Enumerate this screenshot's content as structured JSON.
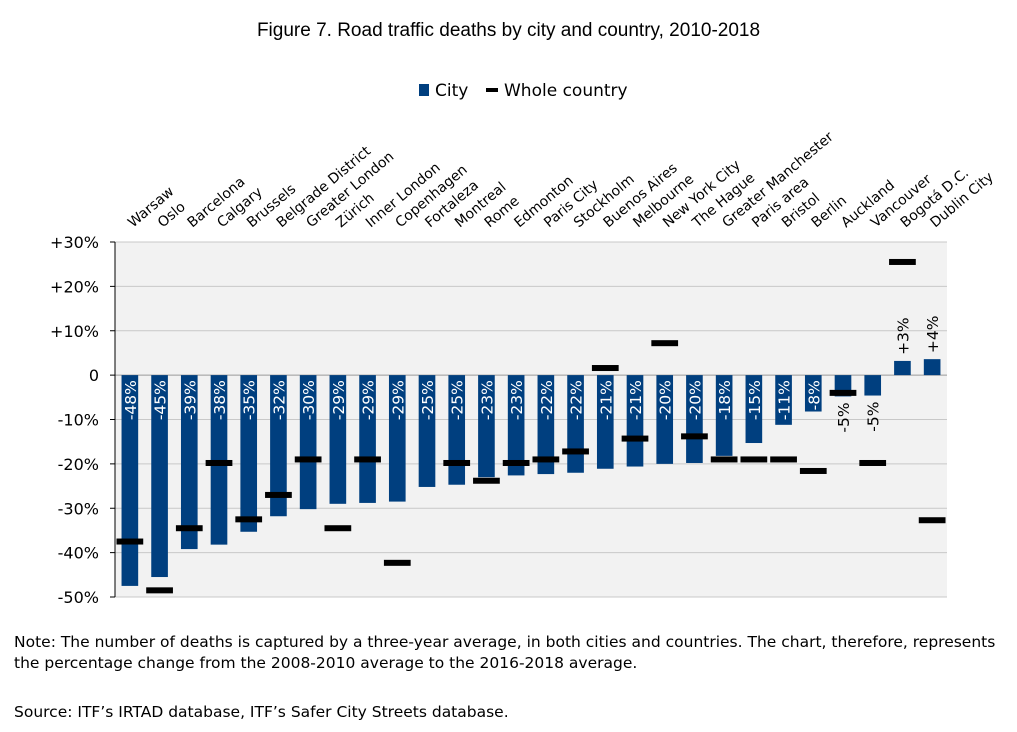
{
  "chart_data": {
    "type": "bar",
    "title": "Figure 7. Road traffic deaths by city and country, 2010-2018",
    "legend": {
      "position": "top",
      "entries": [
        "City",
        "Whole country"
      ]
    },
    "ylim": [
      -50,
      30
    ],
    "y_ticks": [
      "+30%",
      "+20%",
      "+10%",
      "0",
      "-10%",
      "-20%",
      "-30%",
      "-40%",
      "-50%"
    ],
    "grid": true,
    "categories": [
      "Warsaw",
      "Oslo",
      "Barcelona",
      "Calgary",
      "Brussels",
      "Belgrade District",
      "Greater London",
      "Zürich",
      "Inner London",
      "Copenhagen",
      "Fortaleza",
      "Montreal",
      "Rome",
      "Edmonton",
      "Paris City",
      "Stockholm",
      "Buenos Aires",
      "Melbourne",
      "New York City",
      "The Hague",
      "Greater Manchester",
      "Paris area",
      "Bristol",
      "Berlin",
      "Auckland",
      "Vancouver",
      "Bogotá D.C.",
      "Dublin City"
    ],
    "series": [
      {
        "name": "City",
        "color": "#003f7f",
        "values": [
          -47.5,
          -45.5,
          -39.2,
          -38.2,
          -35.3,
          -31.8,
          -30.2,
          -29.0,
          -28.8,
          -28.5,
          -25.2,
          -24.7,
          -23.0,
          -22.6,
          -22.3,
          -22.0,
          -21.1,
          -20.6,
          -20.0,
          -19.8,
          -18.2,
          -15.3,
          -11.2,
          -8.2,
          -4.8,
          -4.6,
          3.2,
          3.6
        ],
        "labels": [
          "-48%",
          "-45%",
          "-39%",
          "-38%",
          "-35%",
          "-32%",
          "-30%",
          "-29%",
          "-29%",
          "-29%",
          "-25%",
          "-25%",
          "-23%",
          "-23%",
          "-22%",
          "-22%",
          "-21%",
          "-21%",
          "-20%",
          "-20%",
          "-18%",
          "-15%",
          "-11%",
          "-8%",
          "-5%",
          "-5%",
          "+3%",
          "+4%"
        ]
      },
      {
        "name": "Whole country",
        "color": "#000000",
        "values": [
          -37.5,
          -48.5,
          -34.5,
          -19.8,
          -32.5,
          -27.0,
          -19.0,
          -34.5,
          -19.0,
          -42.3,
          null,
          -19.8,
          -23.8,
          -19.8,
          -19.0,
          -17.2,
          1.6,
          -14.3,
          7.2,
          -13.8,
          -19.0,
          -19.0,
          -19.0,
          -21.6,
          -4.0,
          -19.8,
          25.5,
          -32.7
        ]
      }
    ]
  },
  "note": "Note: The number of deaths is captured by a three-year average, in both cities and countries. The chart, therefore, represents the percentage change from the 2008-2010 average to the 2016-2018 average.",
  "source": "Source: ITF’s IRTAD database, ITF’s Safer City Streets database."
}
